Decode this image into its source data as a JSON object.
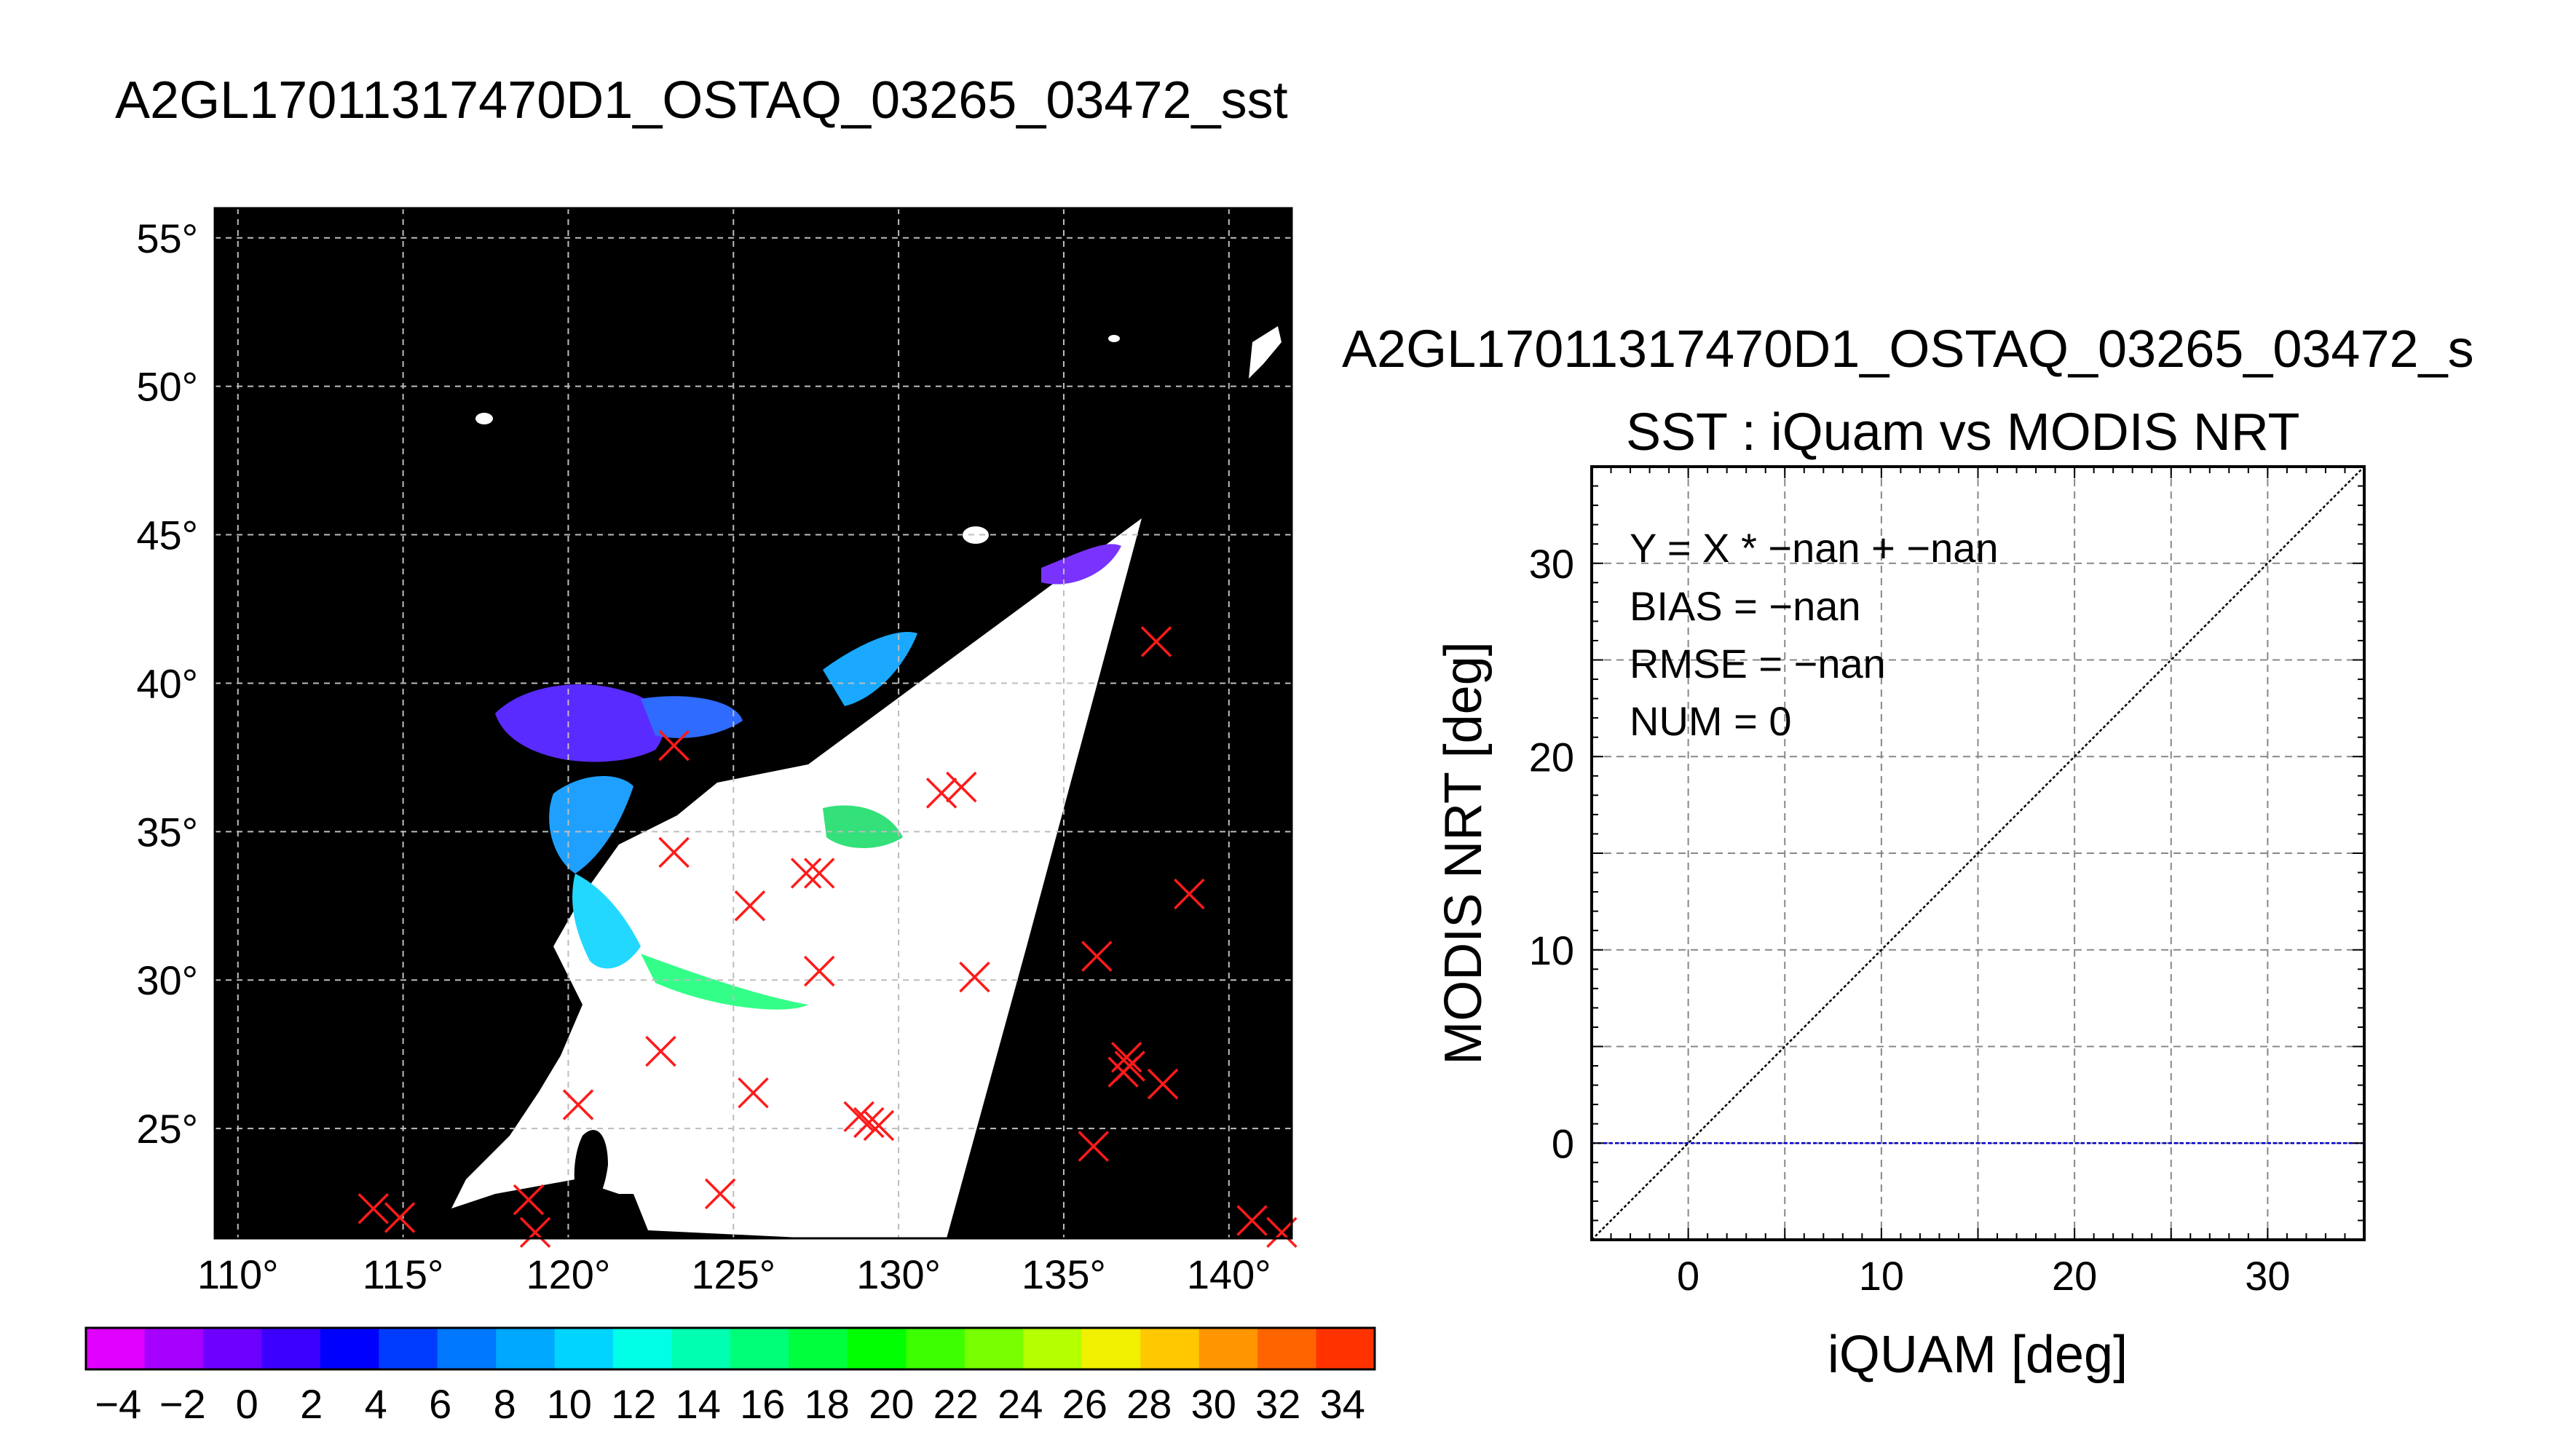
{
  "page": {
    "main_title": "A2GL17011317470D1_OSTAQ_03265_03472_sst"
  },
  "map": {
    "lon_ticks": [
      "110°",
      "115°",
      "120°",
      "125°",
      "130°",
      "135°",
      "140°"
    ],
    "lat_ticks": [
      "55°",
      "50°",
      "45°",
      "40°",
      "35°",
      "30°",
      "25°"
    ],
    "lon_range": [
      109.3,
      141.9
    ],
    "lat_range": [
      21.3,
      56.0
    ],
    "gridline_lons": [
      110,
      115,
      120,
      125,
      130,
      135,
      140
    ],
    "gridline_lats": [
      55,
      50,
      45,
      40,
      35,
      30,
      25
    ],
    "grid": true,
    "background_color": "#000000",
    "swath_color": "#ffffff",
    "marker_color": "#ff1a1a",
    "marker_symbol": "x",
    "markers": [
      {
        "lon": 137.8,
        "lat": 41.4
      },
      {
        "lon": 123.2,
        "lat": 37.9
      },
      {
        "lon": 131.3,
        "lat": 36.3
      },
      {
        "lon": 131.9,
        "lat": 36.5
      },
      {
        "lon": 123.2,
        "lat": 34.3
      },
      {
        "lon": 127.2,
        "lat": 33.6
      },
      {
        "lon": 127.6,
        "lat": 33.6
      },
      {
        "lon": 138.8,
        "lat": 32.9
      },
      {
        "lon": 125.5,
        "lat": 32.5
      },
      {
        "lon": 136.0,
        "lat": 30.8
      },
      {
        "lon": 127.6,
        "lat": 30.3
      },
      {
        "lon": 132.3,
        "lat": 30.1
      },
      {
        "lon": 122.8,
        "lat": 27.6
      },
      {
        "lon": 136.9,
        "lat": 27.4
      },
      {
        "lon": 137.0,
        "lat": 27.1
      },
      {
        "lon": 136.8,
        "lat": 26.9
      },
      {
        "lon": 138.0,
        "lat": 26.5
      },
      {
        "lon": 125.6,
        "lat": 26.2
      },
      {
        "lon": 120.3,
        "lat": 25.8
      },
      {
        "lon": 128.8,
        "lat": 25.4
      },
      {
        "lon": 129.1,
        "lat": 25.2
      },
      {
        "lon": 129.4,
        "lat": 25.1
      },
      {
        "lon": 135.9,
        "lat": 24.4
      },
      {
        "lon": 124.6,
        "lat": 22.8
      },
      {
        "lon": 114.1,
        "lat": 22.3
      },
      {
        "lon": 114.9,
        "lat": 22.0
      },
      {
        "lon": 118.8,
        "lat": 22.6
      },
      {
        "lon": 119.0,
        "lat": 21.5
      },
      {
        "lon": 140.7,
        "lat": 21.9
      },
      {
        "lon": 141.6,
        "lat": 21.5
      }
    ]
  },
  "colorbar": {
    "tick_labels": [
      "−4",
      "−2",
      "0",
      "2",
      "4",
      "6",
      "8",
      "10",
      "12",
      "14",
      "16",
      "18",
      "20",
      "22",
      "24",
      "26",
      "28",
      "30",
      "32",
      "34"
    ],
    "range": [
      -5,
      35
    ],
    "colors": [
      "#e000ff",
      "#a600ff",
      "#6e00ff",
      "#3c00ff",
      "#0000ff",
      "#003cff",
      "#0078ff",
      "#00a8ff",
      "#00d4ff",
      "#00ffe6",
      "#00ffb0",
      "#00ff78",
      "#00ff3c",
      "#00ff00",
      "#3cff00",
      "#78ff00",
      "#b4ff00",
      "#f0f000",
      "#ffc800",
      "#ff9600",
      "#ff6400",
      "#ff3200"
    ]
  },
  "scatter": {
    "header": "A2GL17011317470D1_OSTAQ_03265_03472_s",
    "title": "SST : iQuam vs MODIS NRT",
    "xlabel": "iQUAM [deg]",
    "ylabel": "MODIS NRT [deg]",
    "xlim": [
      -5,
      35
    ],
    "ylim": [
      -5,
      35
    ],
    "x_ticks": [
      "0",
      "10",
      "20",
      "30"
    ],
    "y_ticks": [
      "0",
      "10",
      "20",
      "30"
    ],
    "stats": {
      "fit": "Y = X * −nan + −nan",
      "bias": "BIAS = −nan",
      "rmse": "RMSE = −nan",
      "num": "NUM = 0"
    },
    "one_to_one_color": "#000000",
    "zero_line_color": "#0000cc"
  },
  "chart_data": [
    {
      "type": "scatter",
      "title": "A2GL17011317470D1_OSTAQ_03265_03472_sst",
      "xlabel": "",
      "ylabel": "",
      "xlim": [
        109.3,
        141.9
      ],
      "ylim": [
        21.3,
        56.0
      ],
      "grid": true,
      "series": [
        {
          "x": [
            137.8,
            123.2,
            131.3,
            131.9,
            123.2,
            127.2,
            127.6,
            138.8,
            125.5,
            136.0,
            127.6,
            132.3,
            122.8,
            136.9,
            137.0,
            136.8,
            138.0,
            125.6,
            120.3,
            128.8,
            129.1,
            129.4,
            135.9,
            124.6,
            114.1,
            114.9,
            118.8,
            119.0,
            140.7,
            141.6
          ],
          "y": [
            41.4,
            37.9,
            36.3,
            36.5,
            34.3,
            33.6,
            33.6,
            32.9,
            32.5,
            30.8,
            30.3,
            30.1,
            27.6,
            27.4,
            27.1,
            26.9,
            26.5,
            26.2,
            25.8,
            25.4,
            25.2,
            25.1,
            24.4,
            22.8,
            22.3,
            22.0,
            22.6,
            21.5,
            21.9,
            21.5
          ]
        }
      ]
    },
    {
      "type": "scatter",
      "title": "SST : iQuam vs MODIS NRT",
      "xlabel": "iQUAM [deg]",
      "ylabel": "MODIS NRT [deg]",
      "xlim": [
        -5,
        35
      ],
      "ylim": [
        -5,
        35
      ],
      "grid": true,
      "series": [
        {
          "x": [],
          "y": []
        }
      ]
    }
  ]
}
